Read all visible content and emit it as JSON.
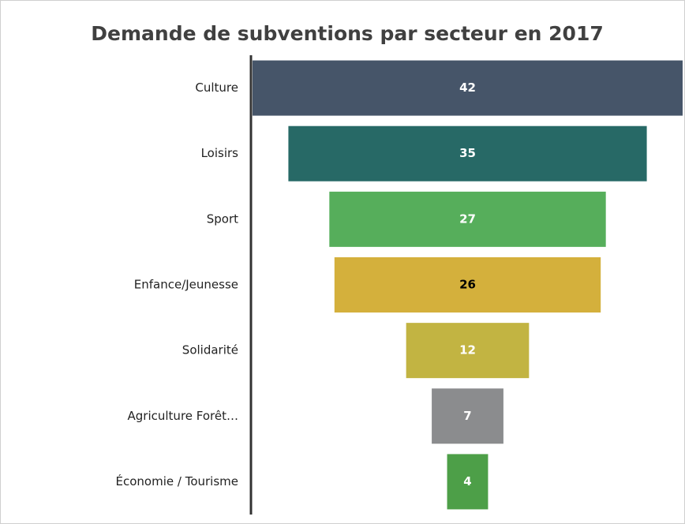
{
  "chart_data": {
    "type": "funnel",
    "title": "Demande de subventions par secteur en 2017",
    "categories": [
      "Culture",
      "Loisirs",
      "Sport",
      "Enfance/Jeunesse",
      "Solidarité",
      "Agriculture Forêt…",
      "Économie / Tourisme"
    ],
    "values": [
      42,
      35,
      27,
      26,
      12,
      7,
      4
    ],
    "colors": [
      "#465569",
      "#276966",
      "#56ae5b",
      "#d4b03c",
      "#c2b442",
      "#8b8c8e",
      "#4d9f48"
    ],
    "label_colors": [
      "#ffffff",
      "#ffffff",
      "#ffffff",
      "#000000",
      "#ffffff",
      "#ffffff",
      "#ffffff"
    ]
  }
}
